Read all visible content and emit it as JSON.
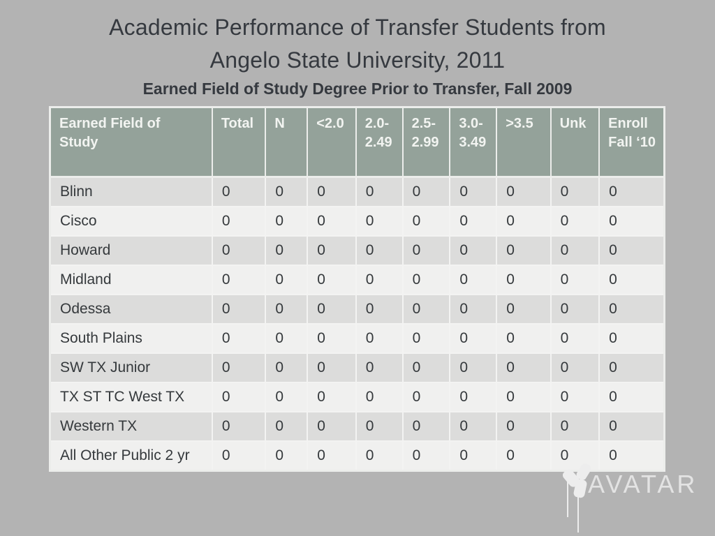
{
  "slide": {
    "title_lines": [
      "Academic Performance of Transfer Students from",
      "Angelo State University, 2011"
    ],
    "subtitle": "Earned Field of Study Degree Prior to Transfer, Fall 2009"
  },
  "table": {
    "columns": [
      "Earned Field of Study",
      "Total",
      "N",
      "<2.0",
      "2.0-2.49",
      "2.5-2.99",
      "3.0-3.49",
      ">3.5",
      "Unk",
      "Enroll Fall ‘10"
    ],
    "rows": [
      {
        "label": "Blinn",
        "values": [
          "0",
          "0",
          "0",
          "0",
          "0",
          "0",
          "0",
          "0",
          "0"
        ]
      },
      {
        "label": "Cisco",
        "values": [
          "0",
          "0",
          "0",
          "0",
          "0",
          "0",
          "0",
          "0",
          "0"
        ]
      },
      {
        "label": "Howard",
        "values": [
          "0",
          "0",
          "0",
          "0",
          "0",
          "0",
          "0",
          "0",
          "0"
        ]
      },
      {
        "label": "Midland",
        "values": [
          "0",
          "0",
          "0",
          "0",
          "0",
          "0",
          "0",
          "0",
          "0"
        ]
      },
      {
        "label": "Odessa",
        "values": [
          "0",
          "0",
          "0",
          "0",
          "0",
          "0",
          "0",
          "0",
          "0"
        ]
      },
      {
        "label": "South Plains",
        "values": [
          "0",
          "0",
          "0",
          "0",
          "0",
          "0",
          "0",
          "0",
          "0"
        ]
      },
      {
        "label": "SW TX Junior",
        "values": [
          "0",
          "0",
          "0",
          "0",
          "0",
          "0",
          "0",
          "0",
          "0"
        ]
      },
      {
        "label": "TX ST TC West TX",
        "values": [
          "0",
          "0",
          "0",
          "0",
          "0",
          "0",
          "0",
          "0",
          "0"
        ]
      },
      {
        "label": "Western TX",
        "values": [
          "0",
          "0",
          "0",
          "0",
          "0",
          "0",
          "0",
          "0",
          "0"
        ]
      },
      {
        "label": "All Other Public 2 yr",
        "values": [
          "0",
          "0",
          "0",
          "0",
          "0",
          "0",
          "0",
          "0",
          "0"
        ]
      }
    ]
  },
  "logo": {
    "text": "AVATAR",
    "icon": "pinwheel-icon"
  },
  "colors": {
    "slide_bg": "#b3b3b3",
    "header_bg": "#94a29a",
    "header_text": "#f2f4f1",
    "row_dark": "#dcdcdb",
    "row_light": "#f0f0ef",
    "cell_text": "#35393c",
    "title_text": "#35393f",
    "logo_color": "#e3e3e3"
  }
}
